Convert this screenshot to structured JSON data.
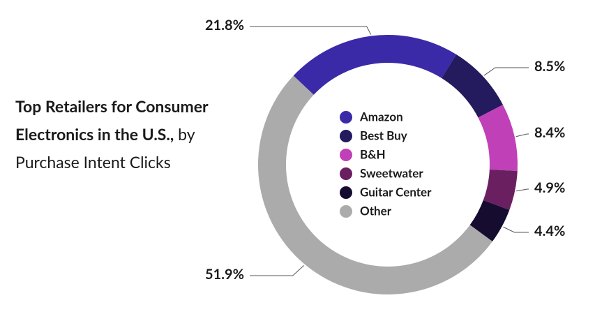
{
  "chart_data": {
    "type": "donut",
    "title": "Top Retailers for Consumer Electronics in the U.S.,",
    "subtitle": "by Purchase Intent Clicks",
    "categories": [
      "Amazon",
      "Best Buy",
      "B&H",
      "Sweetwater",
      "Guitar Center",
      "Other"
    ],
    "values": [
      21.8,
      8.5,
      8.4,
      4.9,
      4.4,
      51.9
    ],
    "value_labels": [
      "21.8%",
      "8.5%",
      "8.4%",
      "4.9%",
      "4.4%",
      "51.9%"
    ],
    "colors": [
      "#3a2aa8",
      "#241a5e",
      "#c040b8",
      "#6a2060",
      "#150c30",
      "#ababab"
    ]
  }
}
